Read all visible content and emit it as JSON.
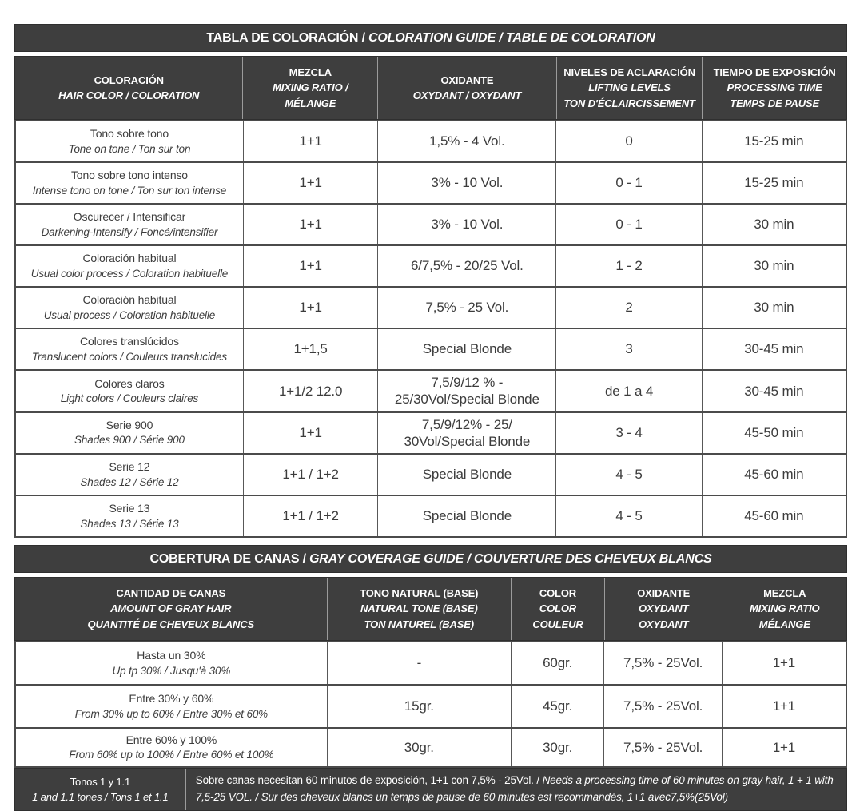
{
  "colors": {
    "header_bg": "#3e3e3e",
    "header_text": "#ffffff",
    "grid_border": "#4b4b4b",
    "body_bg": "#ffffff",
    "body_text": "#3c3c3c"
  },
  "coloration_table": {
    "title_es": "TABLA DE COLORACIÓN / ",
    "title_intl": "COLORATION GUIDE / TABLE DE COLORATION",
    "headers": [
      {
        "l1": "COLORACIÓN",
        "l2": "HAIR COLOR / COLORATION"
      },
      {
        "l1": "MEZCLA",
        "l2": "MIXING RATIO / MÉLANGE"
      },
      {
        "l1": "OXIDANTE",
        "l2": "OXYDANT / OXYDANT"
      },
      {
        "l1": "NIVELES DE ACLARACIÓN",
        "l2": "LIFTING LEVELS",
        "l3": "TON D'ÉCLAIRCISSEMENT"
      },
      {
        "l1": "TIEMPO DE EXPOSICIÓN",
        "l2": "PROCESSING TIME",
        "l3": "TEMPS DE PAUSE"
      }
    ],
    "rows": [
      {
        "name_es": "Tono sobre tono",
        "name_intl": "Tone on tone / Ton sur ton",
        "mix": "1+1",
        "oxidant": "1,5% - 4 Vol.",
        "levels": "0",
        "time": "15-25 min"
      },
      {
        "name_es": "Tono sobre tono intenso",
        "name_intl": "Intense tono on tone / Ton sur ton intense",
        "mix": "1+1",
        "oxidant": "3% - 10 Vol.",
        "levels": "0 - 1",
        "time": "15-25 min"
      },
      {
        "name_es": "Oscurecer / Intensificar",
        "name_intl": "Darkening-Intensify / Foncé/intensifier",
        "mix": "1+1",
        "oxidant": "3% - 10 Vol.",
        "levels": "0 - 1",
        "time": "30 min"
      },
      {
        "name_es": "Coloración habitual",
        "name_intl": "Usual color process / Coloration habituelle",
        "mix": "1+1",
        "oxidant": "6/7,5% - 20/25 Vol.",
        "levels": "1 - 2",
        "time": "30 min"
      },
      {
        "name_es": "Coloración habitual",
        "name_intl": "Usual process / Coloration habituelle",
        "mix": "1+1",
        "oxidant": "7,5% - 25 Vol.",
        "levels": "2",
        "time": "30 min"
      },
      {
        "name_es": "Colores translúcidos",
        "name_intl": "Translucent colors / Couleurs translucides",
        "mix": "1+1,5",
        "oxidant": "Special Blonde",
        "levels": "3",
        "time": "30-45 min"
      },
      {
        "name_es": "Colores claros",
        "name_intl": "Light colors / Couleurs claires",
        "mix": "1+1/2 12.0",
        "oxidant": "7,5/9/12 % - 25/30Vol/Special Blonde",
        "levels": "de 1 a 4",
        "time": "30-45 min"
      },
      {
        "name_es": "Serie 900",
        "name_intl": "Shades 900 / Série 900",
        "mix": "1+1",
        "oxidant": "7,5/9/12% - 25/ 30Vol/Special Blonde",
        "levels": "3 - 4",
        "time": "45-50 min"
      },
      {
        "name_es": "Serie 12",
        "name_intl": "Shades 12 / Série 12",
        "mix": "1+1 / 1+2",
        "oxidant": "Special Blonde",
        "levels": "4 - 5",
        "time": "45-60 min"
      },
      {
        "name_es": "Serie 13",
        "name_intl": "Shades 13 / Série 13",
        "mix": "1+1 / 1+2",
        "oxidant": "Special Blonde",
        "levels": "4 - 5",
        "time": "45-60 min"
      }
    ]
  },
  "gray_table": {
    "title_es": "COBERTURA DE CANAS / ",
    "title_intl": "GRAY COVERAGE GUIDE / COUVERTURE DES CHEVEUX BLANCS",
    "headers": [
      {
        "l1": "CANTIDAD DE CANAS",
        "l2": "AMOUNT OF GRAY HAIR",
        "l3": "QUANTITÉ DE CHEVEUX BLANCS"
      },
      {
        "l1": "TONO NATURAL (BASE)",
        "l2": "NATURAL TONE (BASE)",
        "l3": "TON NATUREL (BASE)"
      },
      {
        "l1": "COLOR",
        "l2": "COLOR",
        "l3": "COULEUR"
      },
      {
        "l1": "OXIDANTE",
        "l2": "OXYDANT",
        "l3": "OXYDANT"
      },
      {
        "l1": "MEZCLA",
        "l2": "MIXING RATIO",
        "l3": "MÉLANGE"
      }
    ],
    "rows": [
      {
        "amount_es": "Hasta un 30%",
        "amount_intl": "Up tp 30% / Jusqu'à 30%",
        "base": "-",
        "color": "60gr.",
        "oxidant": "7,5% - 25Vol.",
        "mix": "1+1"
      },
      {
        "amount_es": "Entre 30% y 60%",
        "amount_intl": "From 30% up to 60% / Entre 30% et 60%",
        "base": "15gr.",
        "color": "45gr.",
        "oxidant": "7,5% - 25Vol.",
        "mix": "1+1"
      },
      {
        "amount_es": "Entre 60% y 100%",
        "amount_intl": "From 60% up to 100% / Entre 60% et 100%",
        "base": "30gr.",
        "color": "30gr.",
        "oxidant": "7,5% - 25Vol.",
        "mix": "1+1"
      }
    ],
    "footer": {
      "label_es": "Tonos 1 y 1.1",
      "label_intl": "1 and 1.1 tones / Tons 1 et 1.1",
      "note_es": "Sobre canas necesitan 60 minutos de exposición, 1+1 con 7,5% - 25Vol. / ",
      "note_intl": "Needs a processing time of 60 minutes on gray hair, 1 + 1 with 7,5-25 VOL. / Sur des cheveux blancs un temps de pause de 60 minutes est recommandés, 1+1 avec7,5%(25Vol)"
    }
  }
}
